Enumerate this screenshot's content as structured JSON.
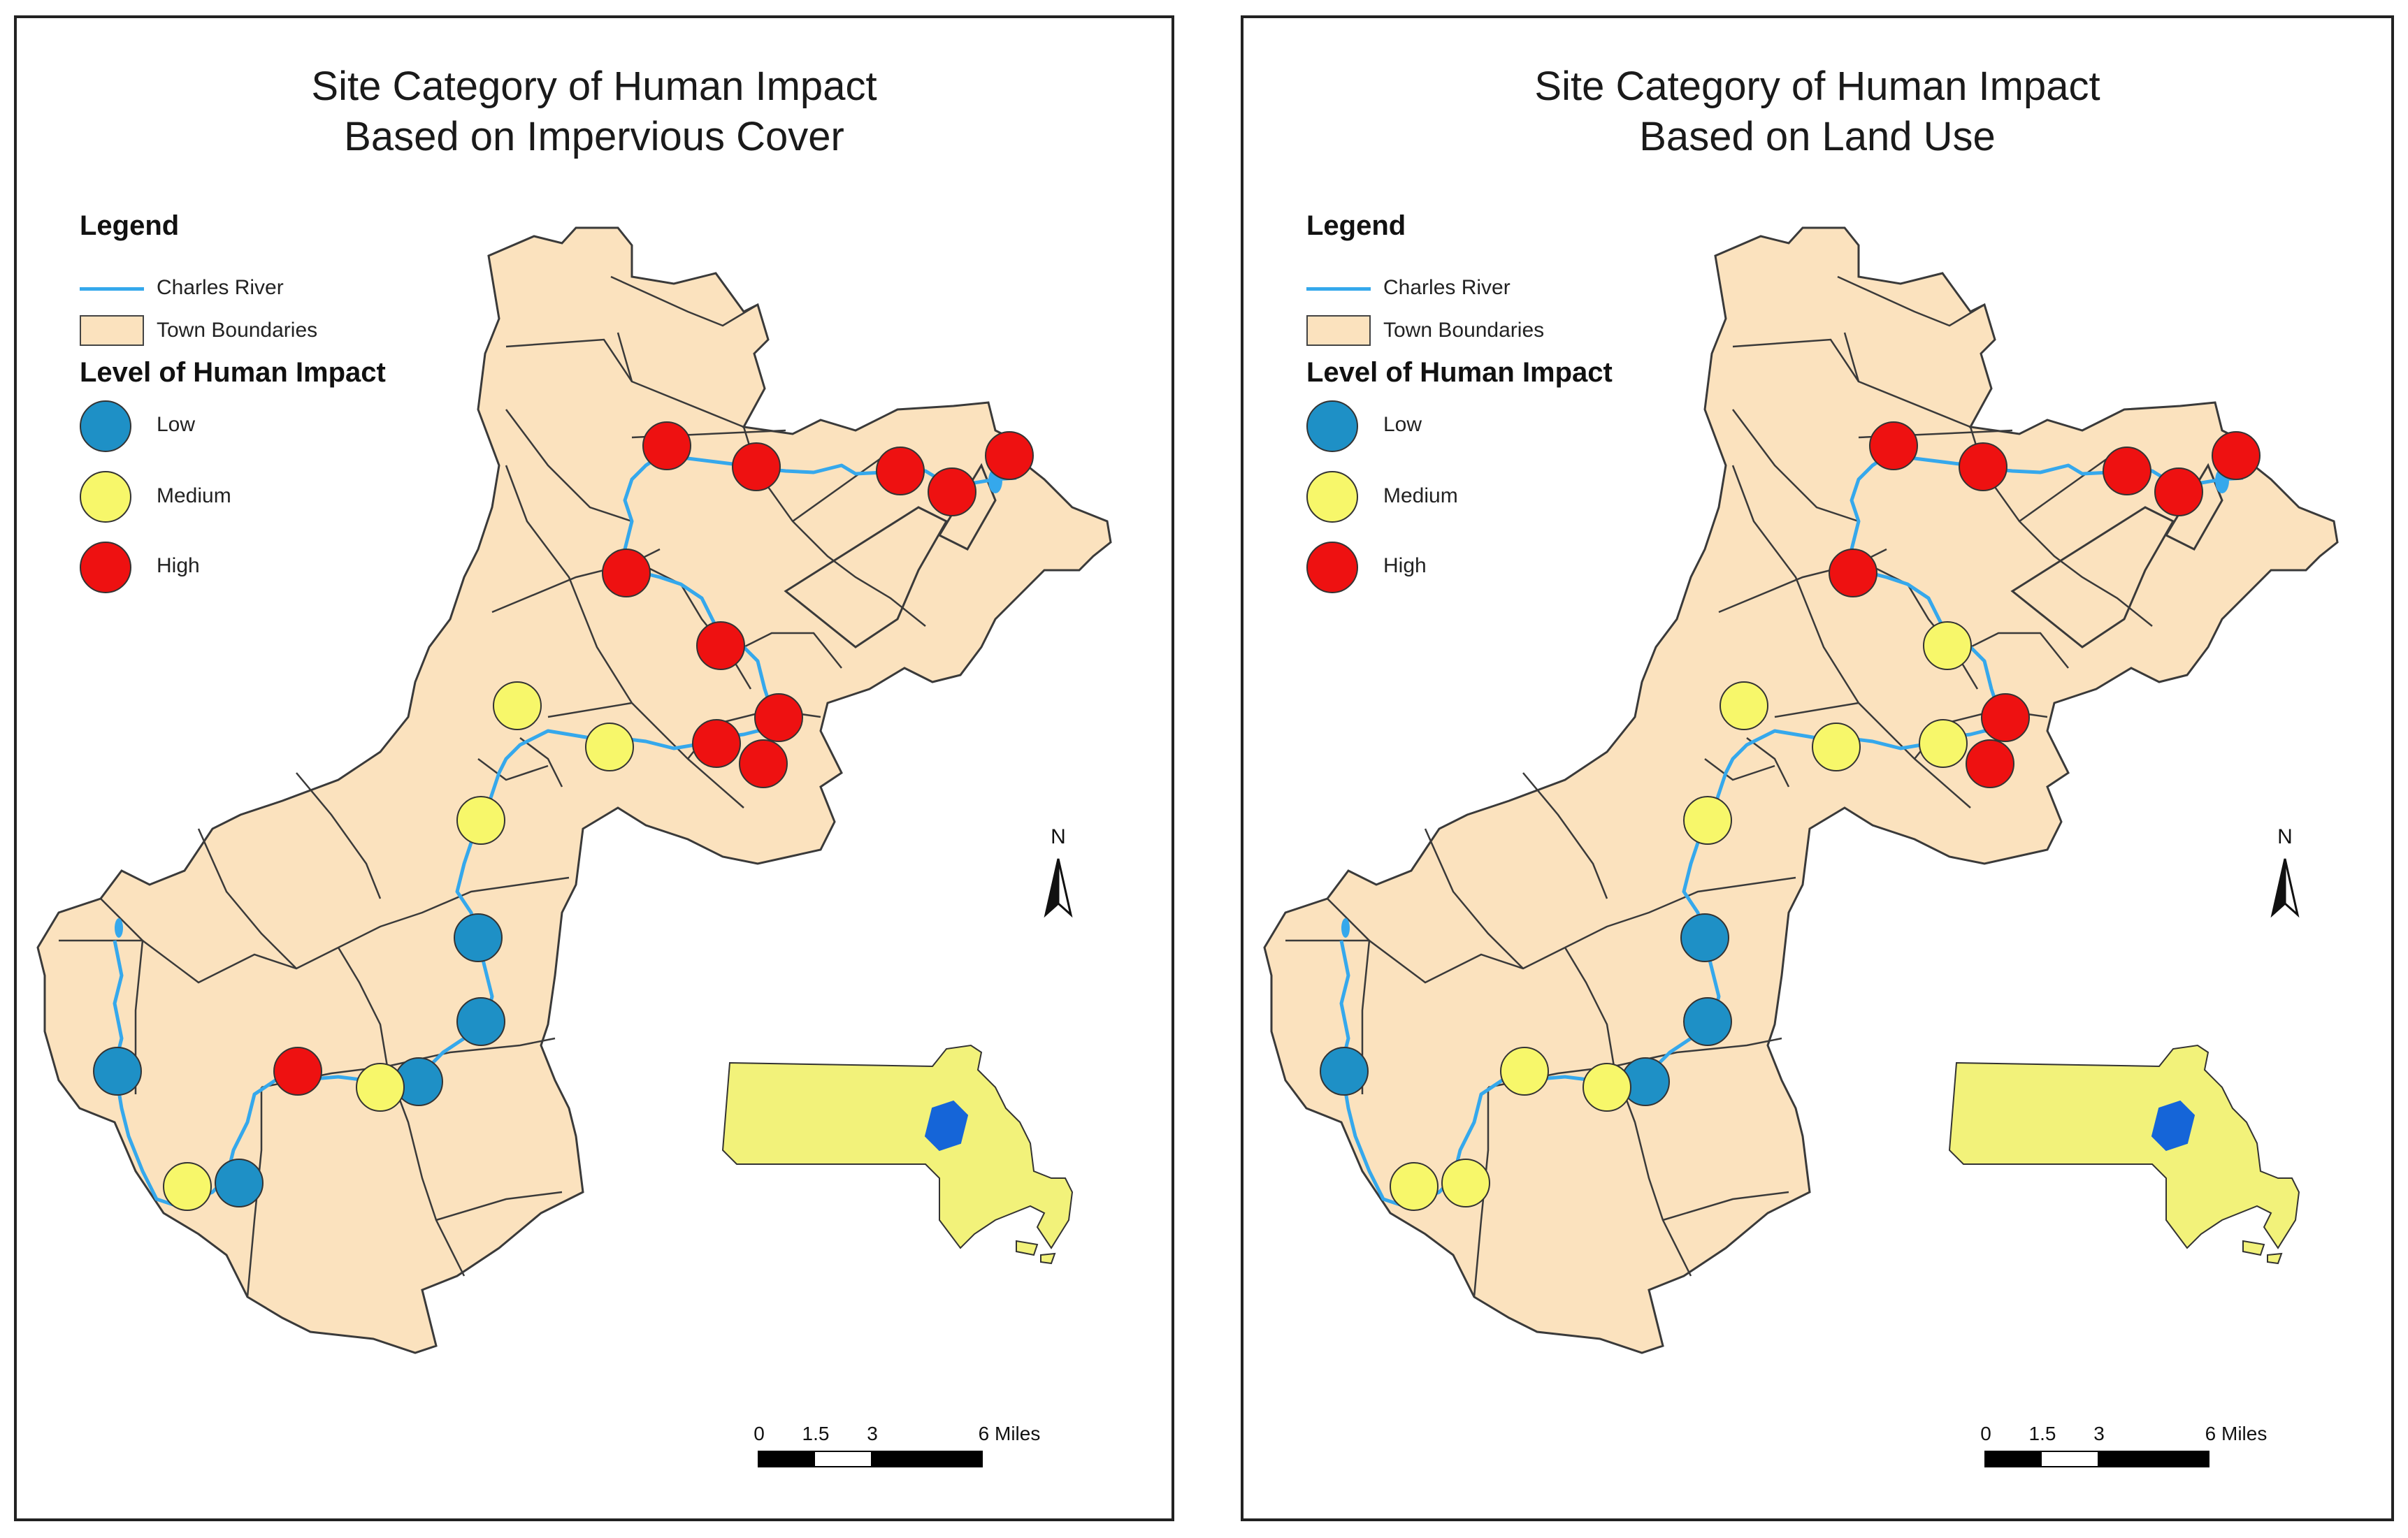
{
  "maps": [
    {
      "title_line1": "Site Category of Human Impact",
      "title_line2": "Based on Impervious Cover",
      "site_levels": [
        "High",
        "High",
        "High",
        "High",
        "High",
        "High",
        "High",
        "High",
        "High",
        "High",
        "Medium",
        "Medium",
        "Medium",
        "Low",
        "Low",
        "Low",
        "Low",
        "High",
        "Medium",
        "Low",
        "Medium",
        "Medium"
      ]
    },
    {
      "title_line1": "Site Category of Human Impact",
      "title_line2": "Based on Land Use",
      "site_levels": [
        "High",
        "High",
        "High",
        "High",
        "High",
        "High",
        "Medium",
        "High",
        "High",
        "Medium",
        "Medium",
        "Medium",
        "Medium",
        "Low",
        "Low",
        "Low",
        "Low",
        "Medium",
        "Medium",
        "Medium",
        "Medium",
        "Medium"
      ]
    }
  ],
  "legend": {
    "heading": "Legend",
    "river_label": "Charles River",
    "towns_label": "Town Boundaries",
    "impact_heading": "Level of Human Impact",
    "low_label": "Low",
    "medium_label": "Medium",
    "high_label": "High"
  },
  "north_label": "N",
  "scale": {
    "zero": "0",
    "mid": "1.5",
    "three": "3",
    "end": "6 Miles"
  },
  "colors": {
    "low": "#1e90c6",
    "medium": "#f7f76a",
    "high": "#ee1111",
    "towns": "#fbe2be",
    "river": "#35a8ec",
    "state": "#f2f27a",
    "watershed": "#1565d8"
  }
}
